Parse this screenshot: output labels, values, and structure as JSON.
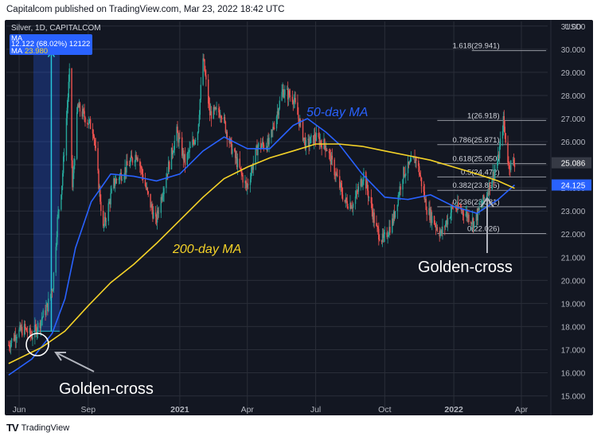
{
  "header": {
    "attribution": "Capitalcom published on TradingView.com, Mar 23, 2022 18:42 UTC"
  },
  "footer": {
    "logo_mark": "TV",
    "brand": "TradingView"
  },
  "legend": {
    "symbol_line": "Silver, 1D, CAPITALCOM",
    "measure_line": "12.122 (68.02%) 12122",
    "ma_label": "MA",
    "ma_value": "23.980",
    "ma2_label": "MA"
  },
  "annotations": {
    "ma50_label": "50-day MA",
    "ma200_label": "200-day MA",
    "golden_cross_left": "Golden-cross",
    "golden_cross_right": "Golden-cross"
  },
  "colors": {
    "background": "#131722",
    "grid": "#2a2e39",
    "candle_up": "#26a69a",
    "candle_down": "#ef5350",
    "ma50": "#2962ff",
    "ma200": "#f5d328",
    "fib": "#9598a1",
    "measure_box": "#2962ff",
    "price_tag": "#363a45",
    "ma_tag": "#2962ff"
  },
  "chart_data": {
    "type": "candlestick",
    "title": "Silver, 1D, CAPITALCOM",
    "currency": "USD",
    "y_ticks": [
      "15.000",
      "16.000",
      "17.000",
      "18.000",
      "19.000",
      "20.000",
      "21.000",
      "22.000",
      "23.000",
      "24.000",
      "25.000",
      "26.000",
      "27.000",
      "28.000",
      "29.000",
      "30.000",
      "31.000"
    ],
    "ylim": [
      14.4,
      31.2
    ],
    "x_ticks": [
      "Jun",
      "Sep",
      "2021",
      "Apr",
      "Jul",
      "Oct",
      "2022",
      "Apr"
    ],
    "last_price": "25.086",
    "ma50_last": "24.125",
    "price_path": [
      [
        "2020-05-18",
        17.2
      ],
      [
        "2020-05-28",
        17.7
      ],
      [
        "2020-06-08",
        17.9
      ],
      [
        "2020-06-18",
        17.6
      ],
      [
        "2020-06-29",
        18.2
      ],
      [
        "2020-07-09",
        18.9
      ],
      [
        "2020-07-16",
        19.8
      ],
      [
        "2020-07-22",
        22.6
      ],
      [
        "2020-07-28",
        24.2
      ],
      [
        "2020-08-07",
        28.9
      ],
      [
        "2020-08-11",
        24.0
      ],
      [
        "2020-08-18",
        27.5
      ],
      [
        "2020-08-27",
        27.1
      ],
      [
        "2020-09-08",
        26.5
      ],
      [
        "2020-09-21",
        22.2
      ],
      [
        "2020-10-05",
        24.2
      ],
      [
        "2020-10-20",
        24.8
      ],
      [
        "2020-11-05",
        25.5
      ],
      [
        "2020-11-20",
        23.6
      ],
      [
        "2020-11-30",
        22.5
      ],
      [
        "2020-12-10",
        24.0
      ],
      [
        "2020-12-28",
        26.4
      ],
      [
        "2021-01-08",
        25.1
      ],
      [
        "2021-01-25",
        26.5
      ],
      [
        "2021-02-01",
        29.6
      ],
      [
        "2021-02-10",
        27.2
      ],
      [
        "2021-02-25",
        27.3
      ],
      [
        "2021-03-10",
        25.8
      ],
      [
        "2021-03-31",
        24.0
      ],
      [
        "2021-04-15",
        25.8
      ],
      [
        "2021-04-30",
        25.9
      ],
      [
        "2021-05-18",
        28.2
      ],
      [
        "2021-06-01",
        27.9
      ],
      [
        "2021-06-18",
        25.8
      ],
      [
        "2021-06-30",
        26.2
      ],
      [
        "2021-07-15",
        25.8
      ],
      [
        "2021-08-09",
        23.4
      ],
      [
        "2021-08-20",
        23.3
      ],
      [
        "2021-09-03",
        24.6
      ],
      [
        "2021-09-20",
        22.2
      ],
      [
        "2021-09-29",
        21.7
      ],
      [
        "2021-10-12",
        22.6
      ],
      [
        "2021-10-25",
        24.6
      ],
      [
        "2021-11-12",
        25.3
      ],
      [
        "2021-11-26",
        23.1
      ],
      [
        "2021-12-15",
        22.0
      ],
      [
        "2021-12-31",
        23.2
      ],
      [
        "2022-01-14",
        23.0
      ],
      [
        "2022-01-28",
        22.5
      ],
      [
        "2022-02-14",
        23.8
      ],
      [
        "2022-03-01",
        25.2
      ],
      [
        "2022-03-08",
        26.9
      ],
      [
        "2022-03-15",
        25.0
      ],
      [
        "2022-03-23",
        25.1
      ]
    ],
    "series": [
      {
        "name": "50-day MA",
        "points": [
          [
            "2020-05-18",
            15.9
          ],
          [
            "2020-06-18",
            16.6
          ],
          [
            "2020-07-15",
            17.7
          ],
          [
            "2020-08-01",
            19.2
          ],
          [
            "2020-08-15",
            21.4
          ],
          [
            "2020-09-05",
            23.4
          ],
          [
            "2020-10-01",
            24.6
          ],
          [
            "2020-11-01",
            24.5
          ],
          [
            "2020-12-01",
            24.3
          ],
          [
            "2021-01-01",
            24.6
          ],
          [
            "2021-02-01",
            25.6
          ],
          [
            "2021-03-01",
            26.2
          ],
          [
            "2021-04-01",
            25.7
          ],
          [
            "2021-05-01",
            25.7
          ],
          [
            "2021-06-01",
            26.7
          ],
          [
            "2021-06-20",
            27.0
          ],
          [
            "2021-07-15",
            26.4
          ],
          [
            "2021-08-01",
            25.9
          ],
          [
            "2021-09-01",
            24.6
          ],
          [
            "2021-10-01",
            23.6
          ],
          [
            "2021-11-01",
            23.5
          ],
          [
            "2021-12-01",
            23.7
          ],
          [
            "2022-01-01",
            23.2
          ],
          [
            "2022-02-01",
            22.9
          ],
          [
            "2022-03-01",
            23.5
          ],
          [
            "2022-03-23",
            24.125
          ]
        ]
      },
      {
        "name": "200-day MA",
        "points": [
          [
            "2020-05-18",
            16.4
          ],
          [
            "2020-07-01",
            17.1
          ],
          [
            "2020-08-01",
            17.8
          ],
          [
            "2020-09-01",
            18.9
          ],
          [
            "2020-10-01",
            19.9
          ],
          [
            "2020-11-01",
            20.7
          ],
          [
            "2020-12-01",
            21.6
          ],
          [
            "2021-01-01",
            22.6
          ],
          [
            "2021-02-01",
            23.6
          ],
          [
            "2021-03-01",
            24.4
          ],
          [
            "2021-04-01",
            24.9
          ],
          [
            "2021-05-01",
            25.3
          ],
          [
            "2021-06-01",
            25.6
          ],
          [
            "2021-07-01",
            25.9
          ],
          [
            "2021-08-01",
            25.9
          ],
          [
            "2021-09-01",
            25.8
          ],
          [
            "2021-10-01",
            25.6
          ],
          [
            "2021-11-01",
            25.4
          ],
          [
            "2021-12-01",
            25.2
          ],
          [
            "2022-01-01",
            24.9
          ],
          [
            "2022-02-01",
            24.6
          ],
          [
            "2022-03-01",
            24.3
          ],
          [
            "2022-03-23",
            23.98
          ]
        ]
      }
    ],
    "fib_levels": [
      {
        "ratio": "1.618",
        "label": "1.618(29.941)",
        "price": 29.941
      },
      {
        "ratio": "1",
        "label": "1(26.918)",
        "price": 26.918
      },
      {
        "ratio": "0.786",
        "label": "0.786(25.871)",
        "price": 25.871
      },
      {
        "ratio": "0.618",
        "label": "0.618(25.050)",
        "price": 25.05
      },
      {
        "ratio": "0.5",
        "label": "0.5(24.472)",
        "price": 24.472
      },
      {
        "ratio": "0.382",
        "label": "0.382(23.895)",
        "price": 23.895
      },
      {
        "ratio": "0.236",
        "label": "0.236(23.181)",
        "price": 23.181
      },
      {
        "ratio": "0",
        "label": "0(22.026)",
        "price": 22.026
      }
    ],
    "measure_range": {
      "from": 17.8,
      "to": 29.94,
      "change": "12.122 (68.02%) 12122"
    }
  }
}
